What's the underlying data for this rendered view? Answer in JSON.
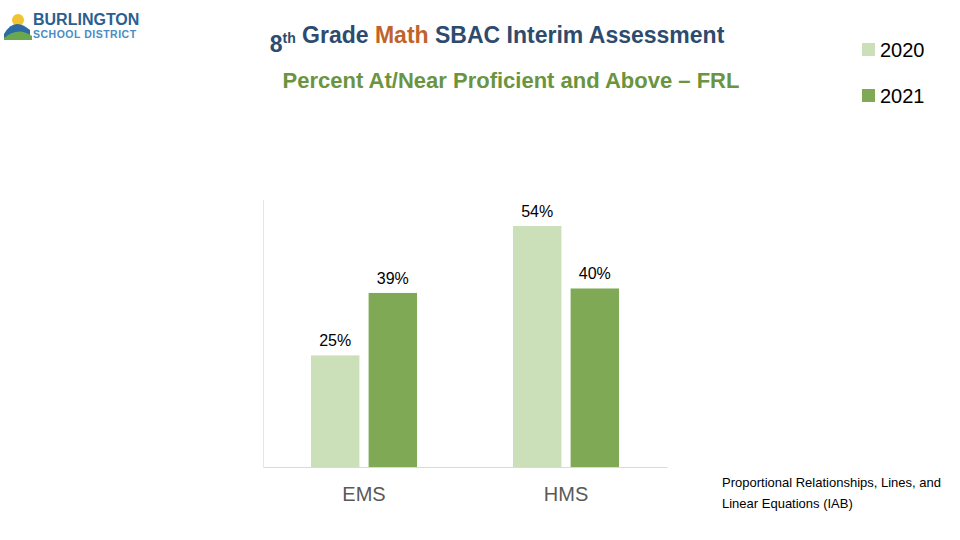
{
  "logo": {
    "lines": [
      "BURLINGTON",
      "SCHOOL DISTRICT"
    ]
  },
  "chart_data": {
    "type": "bar",
    "title": "8th Grade Math SBAC Interim Assessment",
    "subtitle": "Percent At/Near Proficient and Above – FRL",
    "annotations": [
      "Proportional Relationships, Lines, and Linear Equations (IAB)"
    ],
    "categories": [
      "EMS",
      "HMS"
    ],
    "series": [
      {
        "name": "2020",
        "color": "#cbdfb8",
        "values": [
          25,
          54
        ],
        "value_labels": [
          "25%",
          "54%"
        ]
      },
      {
        "name": "2021",
        "color": "#7fa955",
        "values": [
          39,
          40
        ],
        "value_labels": [
          "39%",
          "40%"
        ]
      }
    ],
    "ylim": [
      0,
      60
    ],
    "data_labels": true,
    "tick_labels": "x",
    "legend": "top-right",
    "grid": false
  }
}
